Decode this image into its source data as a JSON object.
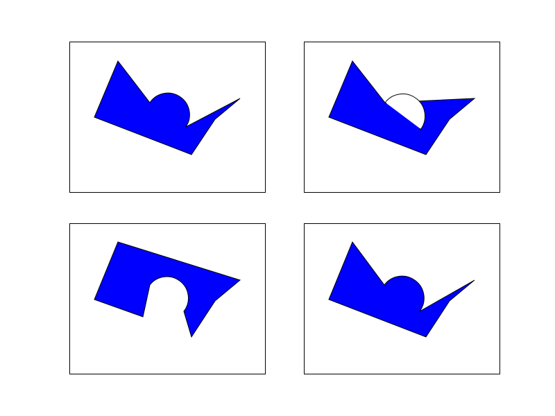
{
  "figure": {
    "background": "#ffffff",
    "panel_border_color": "#000000",
    "shape_fill_color": "#0000ff",
    "shape_stroke_color": "#000000",
    "panel_count": 4,
    "layout": "2x2 grid",
    "panels": [
      {
        "position": "top-left",
        "description_shape": "blue polygon with attached semicircular bump"
      },
      {
        "position": "top-right",
        "description_shape": "blue polygon with overlapping semicircular hole"
      },
      {
        "position": "bottom-left",
        "description_shape": "blue polygon with semicircular notch cut out"
      },
      {
        "position": "bottom-right",
        "description_shape": "blue polygon with attached semicircular bump"
      }
    ]
  }
}
